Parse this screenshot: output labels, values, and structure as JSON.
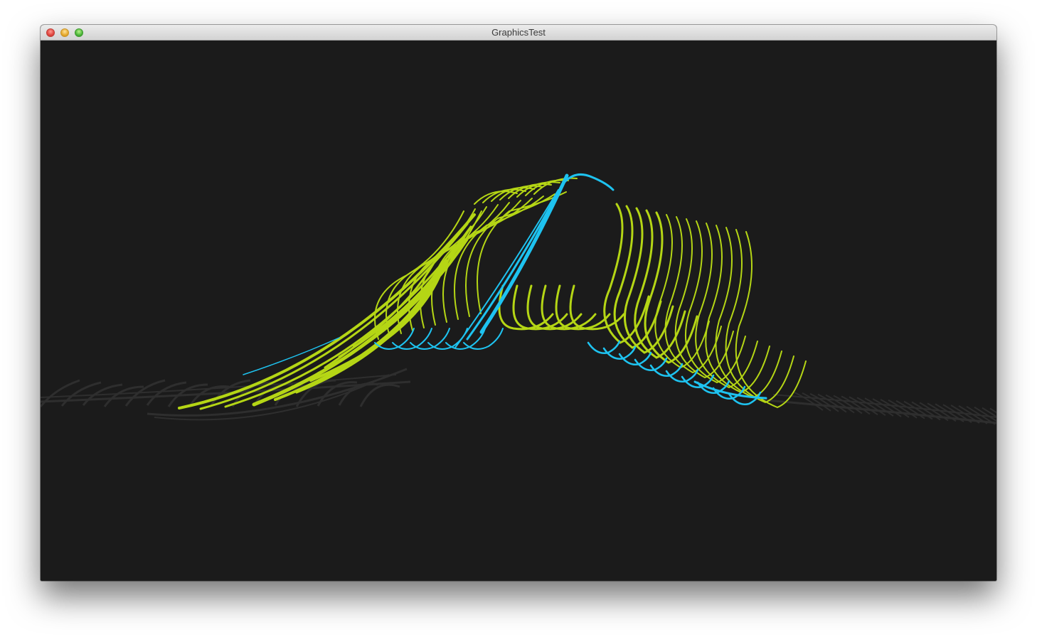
{
  "window": {
    "title": "GraphicsTest"
  },
  "colors": {
    "background": "#1b1b1b",
    "lime": "#b5d615",
    "cyan": "#1ec3f0",
    "gray": "#2e2e2e"
  }
}
